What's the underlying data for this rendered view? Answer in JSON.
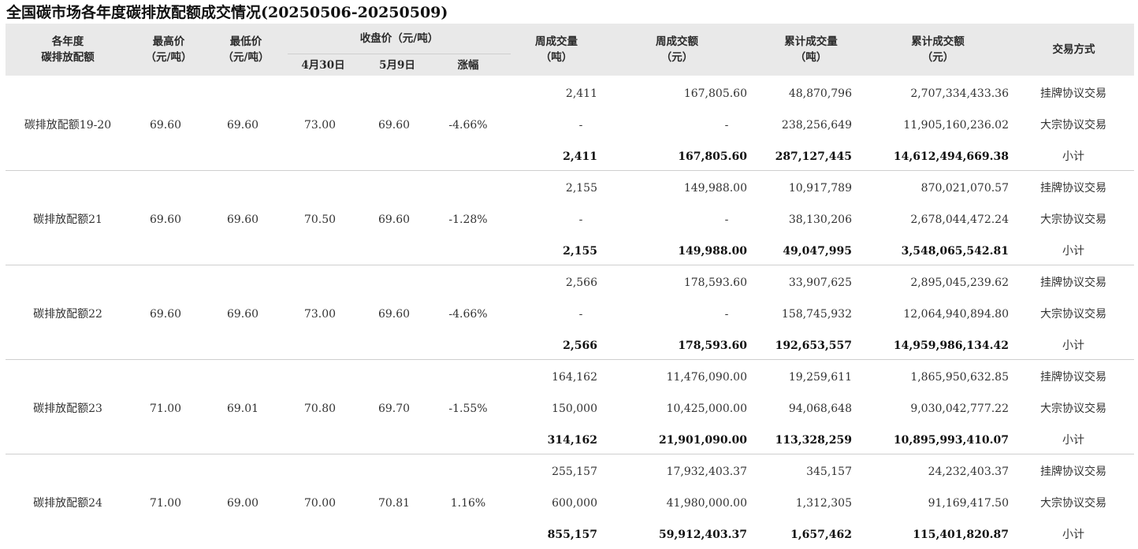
{
  "title": "全国碳市场各年度碳排放配额成交情况(20250506-20250509)",
  "headers": {
    "year_line1": "各年度",
    "year_line2": "碳排放配额",
    "high_line1": "最高价",
    "high_line2": "（元/吨）",
    "low_line1": "最低价",
    "low_line2": "（元/吨）",
    "close_group": "收盘价（元/吨）",
    "close_apr30": "4月30日",
    "close_may9": "5月9日",
    "change": "涨幅",
    "week_vol_line1": "周成交量",
    "week_vol_line2": "（吨）",
    "week_amt_line1": "周成交额",
    "week_amt_line2": "（元）",
    "cum_vol_line1": "累计成交量",
    "cum_vol_line2": "（吨）",
    "cum_amt_line1": "累计成交额",
    "cum_amt_line2": "（元）",
    "method": "交易方式"
  },
  "groups": [
    {
      "name": "碳排放配额19-20",
      "high": "69.60",
      "low": "69.60",
      "close_apr30": "73.00",
      "close_may9": "69.60",
      "change": "-4.66%",
      "rows": [
        {
          "week_vol": "2,411",
          "week_amt": "167,805.60",
          "cum_vol": "48,870,796",
          "cum_amt": "2,707,334,433.36",
          "method": "挂牌协议交易"
        },
        {
          "week_vol": "-",
          "week_amt": "-",
          "cum_vol": "238,256,649",
          "cum_amt": "11,905,160,236.02",
          "method": "大宗协议交易"
        },
        {
          "week_vol": "2,411",
          "week_amt": "167,805.60",
          "cum_vol": "287,127,445",
          "cum_amt": "14,612,494,669.38",
          "method": "小计"
        }
      ]
    },
    {
      "name": "碳排放配额21",
      "high": "69.60",
      "low": "69.60",
      "close_apr30": "70.50",
      "close_may9": "69.60",
      "change": "-1.28%",
      "rows": [
        {
          "week_vol": "2,155",
          "week_amt": "149,988.00",
          "cum_vol": "10,917,789",
          "cum_amt": "870,021,070.57",
          "method": "挂牌协议交易"
        },
        {
          "week_vol": "-",
          "week_amt": "-",
          "cum_vol": "38,130,206",
          "cum_amt": "2,678,044,472.24",
          "method": "大宗协议交易"
        },
        {
          "week_vol": "2,155",
          "week_amt": "149,988.00",
          "cum_vol": "49,047,995",
          "cum_amt": "3,548,065,542.81",
          "method": "小计"
        }
      ]
    },
    {
      "name": "碳排放配额22",
      "high": "69.60",
      "low": "69.60",
      "close_apr30": "73.00",
      "close_may9": "69.60",
      "change": "-4.66%",
      "rows": [
        {
          "week_vol": "2,566",
          "week_amt": "178,593.60",
          "cum_vol": "33,907,625",
          "cum_amt": "2,895,045,239.62",
          "method": "挂牌协议交易"
        },
        {
          "week_vol": "-",
          "week_amt": "-",
          "cum_vol": "158,745,932",
          "cum_amt": "12,064,940,894.80",
          "method": "大宗协议交易"
        },
        {
          "week_vol": "2,566",
          "week_amt": "178,593.60",
          "cum_vol": "192,653,557",
          "cum_amt": "14,959,986,134.42",
          "method": "小计"
        }
      ]
    },
    {
      "name": "碳排放配额23",
      "high": "71.00",
      "low": "69.01",
      "close_apr30": "70.80",
      "close_may9": "69.70",
      "change": "-1.55%",
      "rows": [
        {
          "week_vol": "164,162",
          "week_amt": "11,476,090.00",
          "cum_vol": "19,259,611",
          "cum_amt": "1,865,950,632.85",
          "method": "挂牌协议交易"
        },
        {
          "week_vol": "150,000",
          "week_amt": "10,425,000.00",
          "cum_vol": "94,068,648",
          "cum_amt": "9,030,042,777.22",
          "method": "大宗协议交易"
        },
        {
          "week_vol": "314,162",
          "week_amt": "21,901,090.00",
          "cum_vol": "113,328,259",
          "cum_amt": "10,895,993,410.07",
          "method": "小计"
        }
      ]
    },
    {
      "name": "碳排放配额24",
      "high": "71.00",
      "low": "69.00",
      "close_apr30": "70.00",
      "close_may9": "70.81",
      "change": "1.16%",
      "rows": [
        {
          "week_vol": "255,157",
          "week_amt": "17,932,403.37",
          "cum_vol": "345,157",
          "cum_amt": "24,232,403.37",
          "method": "挂牌协议交易"
        },
        {
          "week_vol": "600,000",
          "week_amt": "41,980,000.00",
          "cum_vol": "1,312,305",
          "cum_amt": "91,169,417.50",
          "method": "大宗协议交易"
        },
        {
          "week_vol": "855,157",
          "week_amt": "59,912,403.37",
          "cum_vol": "1,657,462",
          "cum_amt": "115,401,820.87",
          "method": "小计"
        }
      ]
    }
  ]
}
